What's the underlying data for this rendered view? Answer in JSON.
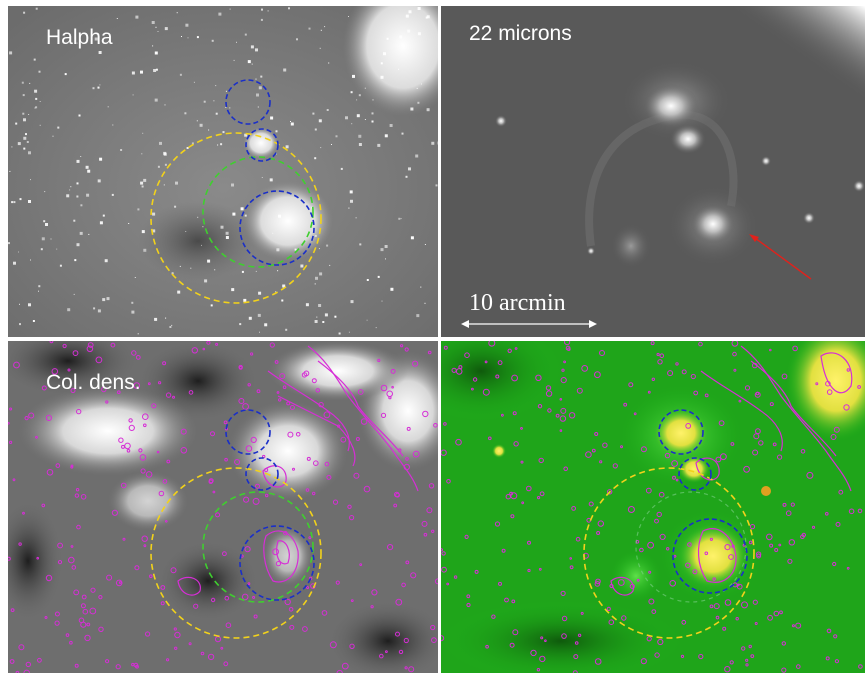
{
  "panels": {
    "halpha": {
      "label": "Halpha"
    },
    "micron22": {
      "label": "22 microns",
      "scale_bar": "10 arcmin"
    },
    "coldens": {
      "label": "Col. dens."
    },
    "composite": {
      "label": ""
    }
  },
  "colors": {
    "outer_circle": "#f2d21b",
    "middle_circle": "#3fcf2f",
    "inner_circles": "#1a2fc8",
    "contours": "#d62ed6",
    "arrow": "#e0221c",
    "composite_green": "#1fb51a",
    "composite_yellow": "#f2e23a"
  },
  "icons": {
    "pointer": "red-arrow-icon",
    "scale": "double-headed-arrow-icon"
  }
}
